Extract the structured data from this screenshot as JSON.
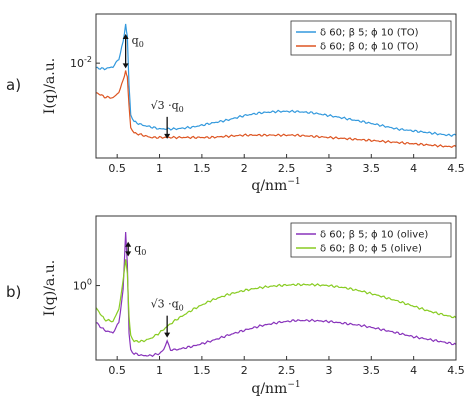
{
  "chart_data": [
    {
      "type": "line",
      "panel_label": "a)",
      "xlabel": "q/nm",
      "xlabel_sup": "−1",
      "ylabel": "I(q)/a.u.",
      "xlim": [
        0.25,
        4.5
      ],
      "y_scale": "log",
      "ylim": [
        0.0012,
        0.03
      ],
      "x_ticks": [
        0.5,
        1,
        1.5,
        2,
        2.5,
        3,
        3.5,
        4,
        4.5
      ],
      "x_tick_labels": [
        "0.5",
        "1",
        "1.5",
        "2",
        "2.5",
        "3",
        "3.5",
        "4",
        "4.5"
      ],
      "y_tick_label_base": "10",
      "y_tick_label_exp": "-2",
      "y_tick_value": 0.01,
      "legend_position": "top-right",
      "series": [
        {
          "name": "δ 60; β 5; ϕ 10 (TO)",
          "color": "#3399dd",
          "x": [
            0.25,
            0.35,
            0.45,
            0.52,
            0.57,
            0.6,
            0.62,
            0.64,
            0.66,
            0.7,
            0.8,
            0.9,
            1.0,
            1.1,
            1.2,
            1.4,
            1.6,
            1.8,
            2.0,
            2.2,
            2.4,
            2.6,
            2.8,
            3.0,
            3.2,
            3.4,
            3.6,
            3.8,
            4.0,
            4.2,
            4.4,
            4.5
          ],
          "y": [
            0.009,
            0.0088,
            0.0092,
            0.011,
            0.016,
            0.024,
            0.018,
            0.006,
            0.0032,
            0.0027,
            0.0025,
            0.0024,
            0.0023,
            0.0023,
            0.0023,
            0.0024,
            0.0026,
            0.0028,
            0.0031,
            0.0033,
            0.0034,
            0.0034,
            0.0033,
            0.0031,
            0.0029,
            0.0027,
            0.0025,
            0.0023,
            0.0022,
            0.0021,
            0.002,
            0.002
          ]
        },
        {
          "name": "δ 60; β 0; ϕ 10 (TO)",
          "color": "#dd5522",
          "x": [
            0.25,
            0.35,
            0.45,
            0.52,
            0.57,
            0.6,
            0.62,
            0.64,
            0.66,
            0.7,
            0.8,
            0.9,
            1.0,
            1.1,
            1.2,
            1.4,
            1.6,
            1.8,
            2.0,
            2.2,
            2.4,
            2.6,
            2.8,
            3.0,
            3.2,
            3.4,
            3.6,
            3.8,
            4.0,
            4.2,
            4.4,
            4.5
          ],
          "y": [
            0.0052,
            0.0047,
            0.0046,
            0.0052,
            0.0068,
            0.0085,
            0.0072,
            0.0038,
            0.0024,
            0.0021,
            0.002,
            0.0019,
            0.0019,
            0.0019,
            0.0019,
            0.0019,
            0.0019,
            0.00195,
            0.002,
            0.002,
            0.002,
            0.002,
            0.00195,
            0.0019,
            0.00185,
            0.0018,
            0.00175,
            0.0017,
            0.00165,
            0.0016,
            0.00155,
            0.00155
          ]
        }
      ],
      "annotations": [
        {
          "text": "q",
          "sub": "0",
          "x": 0.6,
          "y_text": 0.02
        },
        {
          "text": "√3 ·q",
          "sub": "0",
          "x": 1.09,
          "y_text": 0.0036
        }
      ]
    },
    {
      "type": "line",
      "panel_label": "b)",
      "xlabel": "q/nm",
      "xlabel_sup": "−1",
      "ylabel": "I(q)/a.u.",
      "xlim": [
        0.25,
        4.5
      ],
      "y_scale": "log",
      "ylim": [
        0.2,
        4.5
      ],
      "x_ticks": [
        0.5,
        1,
        1.5,
        2,
        2.5,
        3,
        3.5,
        4,
        4.5
      ],
      "x_tick_labels": [
        "0.5",
        "1",
        "1.5",
        "2",
        "2.5",
        "3",
        "3.5",
        "4",
        "4.5"
      ],
      "y_tick_label_base": "10",
      "y_tick_label_exp": "0",
      "y_tick_value": 1.0,
      "legend_position": "top-right",
      "series": [
        {
          "name": "δ 60; β 5; ϕ 10 (olive)",
          "color": "#8833bb",
          "x": [
            0.25,
            0.35,
            0.45,
            0.52,
            0.57,
            0.6,
            0.62,
            0.64,
            0.66,
            0.7,
            0.8,
            0.9,
            1.0,
            1.05,
            1.09,
            1.13,
            1.2,
            1.4,
            1.6,
            1.8,
            2.0,
            2.2,
            2.4,
            2.6,
            2.8,
            3.0,
            3.2,
            3.4,
            3.6,
            3.8,
            4.0,
            4.2,
            4.4,
            4.5
          ],
          "y": [
            0.45,
            0.38,
            0.36,
            0.45,
            0.9,
            3.2,
            1.6,
            0.35,
            0.25,
            0.23,
            0.22,
            0.22,
            0.23,
            0.25,
            0.3,
            0.25,
            0.25,
            0.27,
            0.3,
            0.34,
            0.38,
            0.42,
            0.45,
            0.47,
            0.47,
            0.46,
            0.44,
            0.42,
            0.39,
            0.36,
            0.33,
            0.31,
            0.29,
            0.28
          ]
        },
        {
          "name": "δ 60; β 0; ϕ 5 (olive)",
          "color": "#88cc22",
          "x": [
            0.25,
            0.35,
            0.45,
            0.52,
            0.57,
            0.6,
            0.62,
            0.64,
            0.66,
            0.7,
            0.8,
            0.9,
            1.0,
            1.1,
            1.2,
            1.4,
            1.6,
            1.8,
            2.0,
            2.2,
            2.4,
            2.6,
            2.8,
            3.0,
            3.2,
            3.4,
            3.6,
            3.8,
            4.0,
            4.2,
            4.4,
            4.5
          ],
          "y": [
            0.62,
            0.48,
            0.46,
            0.6,
            1.1,
            1.8,
            1.3,
            0.5,
            0.34,
            0.3,
            0.3,
            0.32,
            0.36,
            0.42,
            0.48,
            0.6,
            0.72,
            0.82,
            0.9,
            0.96,
            1.0,
            1.02,
            1.02,
            1.0,
            0.95,
            0.88,
            0.8,
            0.72,
            0.64,
            0.57,
            0.52,
            0.5
          ]
        }
      ],
      "annotations": [
        {
          "text": "q",
          "sub": "0",
          "x": 0.63,
          "y_text": 2.0
        },
        {
          "text": "√3 ·q",
          "sub": "0",
          "x": 1.09,
          "y_text": 0.62
        }
      ]
    }
  ]
}
